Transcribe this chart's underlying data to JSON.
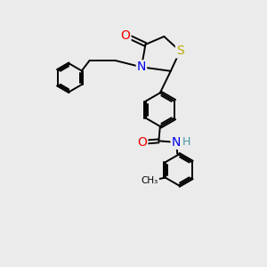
{
  "background_color": "#ebebeb",
  "atom_colors": {
    "C": "#000000",
    "N": "#0000ee",
    "O": "#ee0000",
    "S": "#bbaa00",
    "H": "#4499aa"
  },
  "bond_color": "#000000",
  "bond_width": 1.4,
  "figsize": [
    3.0,
    3.0
  ],
  "dpi": 100
}
